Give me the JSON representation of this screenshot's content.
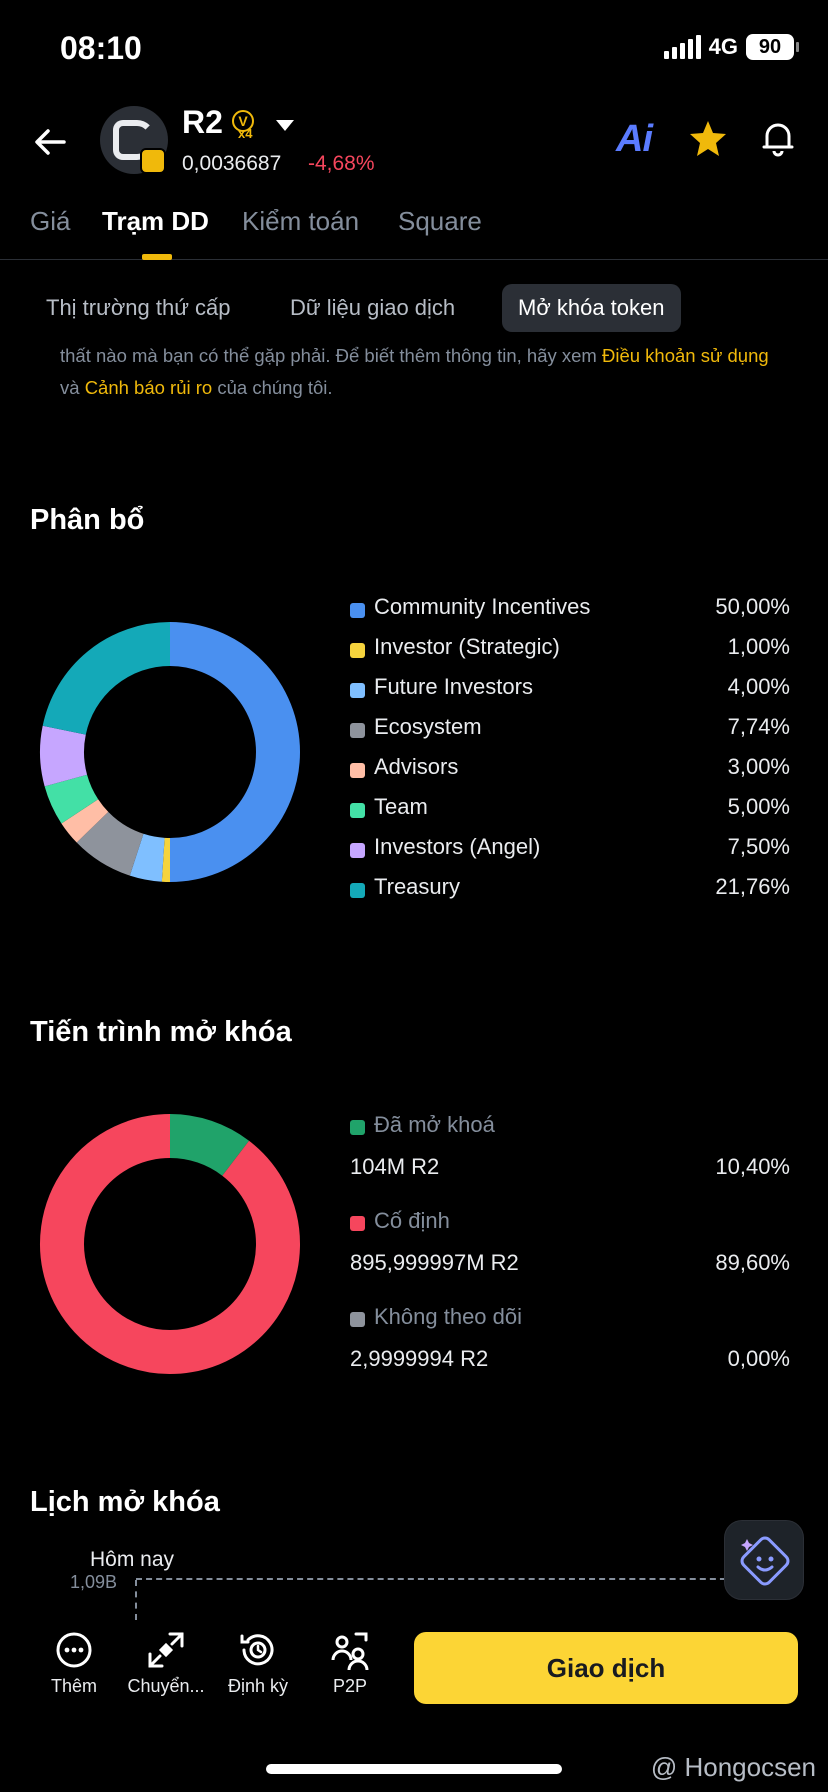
{
  "status_bar": {
    "time": "08:10",
    "network": "4G",
    "battery": "90"
  },
  "header": {
    "token_name": "R2",
    "badge_letter": "V",
    "badge_multiplier": "x4",
    "price": "0,0036687",
    "change": "-4,68%",
    "ai_label": "Ai",
    "colors": {
      "positive": "#0ecb81",
      "negative": "#f6465d",
      "accent": "#f0b90b"
    }
  },
  "main_tabs": [
    {
      "label": "Giá"
    },
    {
      "label": "Trạm DD"
    },
    {
      "label": "Kiểm toán"
    },
    {
      "label": "Square"
    }
  ],
  "sub_tabs": [
    {
      "label": "Thị trường thứ cấp"
    },
    {
      "label": "Dữ liệu giao dịch"
    },
    {
      "label": "Mở khóa token"
    }
  ],
  "disclaimer": {
    "part1": "thất nào mà bạn có thể gặp phải. Để biết thêm thông tin, hãy xem ",
    "link1": "Điều khoản sử dụng",
    "part2": " và ",
    "link2": "Cảnh báo rủi ro",
    "part3": " của chúng tôi."
  },
  "allocation": {
    "title": "Phân bổ",
    "items": [
      {
        "label": "Community Incentives",
        "pct": "50,00%",
        "value": 50.0,
        "color": "#4a90f0"
      },
      {
        "label": "Investor (Strategic)",
        "pct": "1,00%",
        "value": 1.0,
        "color": "#f5d33d"
      },
      {
        "label": "Future Investors",
        "pct": "4,00%",
        "value": 4.0,
        "color": "#7fbfff"
      },
      {
        "label": "Ecosystem",
        "pct": "7,74%",
        "value": 7.74,
        "color": "#8e939c"
      },
      {
        "label": "Advisors",
        "pct": "3,00%",
        "value": 3.0,
        "color": "#ffbea6"
      },
      {
        "label": "Team",
        "pct": "5,00%",
        "value": 5.0,
        "color": "#43e0a6"
      },
      {
        "label": "Investors (Angel)",
        "pct": "7,50%",
        "value": 7.5,
        "color": "#c6a6ff"
      },
      {
        "label": "Treasury",
        "pct": "21,76%",
        "value": 21.76,
        "color": "#14a9b8"
      }
    ]
  },
  "unlock_progress": {
    "title": "Tiến trình mở khóa",
    "items": [
      {
        "label": "Đã mở khoá",
        "amount": "104M R2",
        "pct": "10,40%",
        "value": 10.4,
        "color": "#20a36a"
      },
      {
        "label": "Cố định",
        "amount": "895,999997M R2",
        "pct": "89,60%",
        "value": 89.6,
        "color": "#f6465d"
      },
      {
        "label": "Không theo dõi",
        "amount": "2,9999994 R2",
        "pct": "0,00%",
        "value": 0.0,
        "color": "#8e939c"
      }
    ]
  },
  "schedule": {
    "title": "Lịch mở khóa",
    "today_label": "Hôm nay",
    "y_label": "1,09B"
  },
  "bottom_bar": {
    "items": [
      {
        "label": "Thêm"
      },
      {
        "label": "Chuyển..."
      },
      {
        "label": "Định kỳ"
      },
      {
        "label": "P2P"
      }
    ],
    "trade_label": "Giao dịch"
  },
  "watermark": "@ Hongocsen"
}
